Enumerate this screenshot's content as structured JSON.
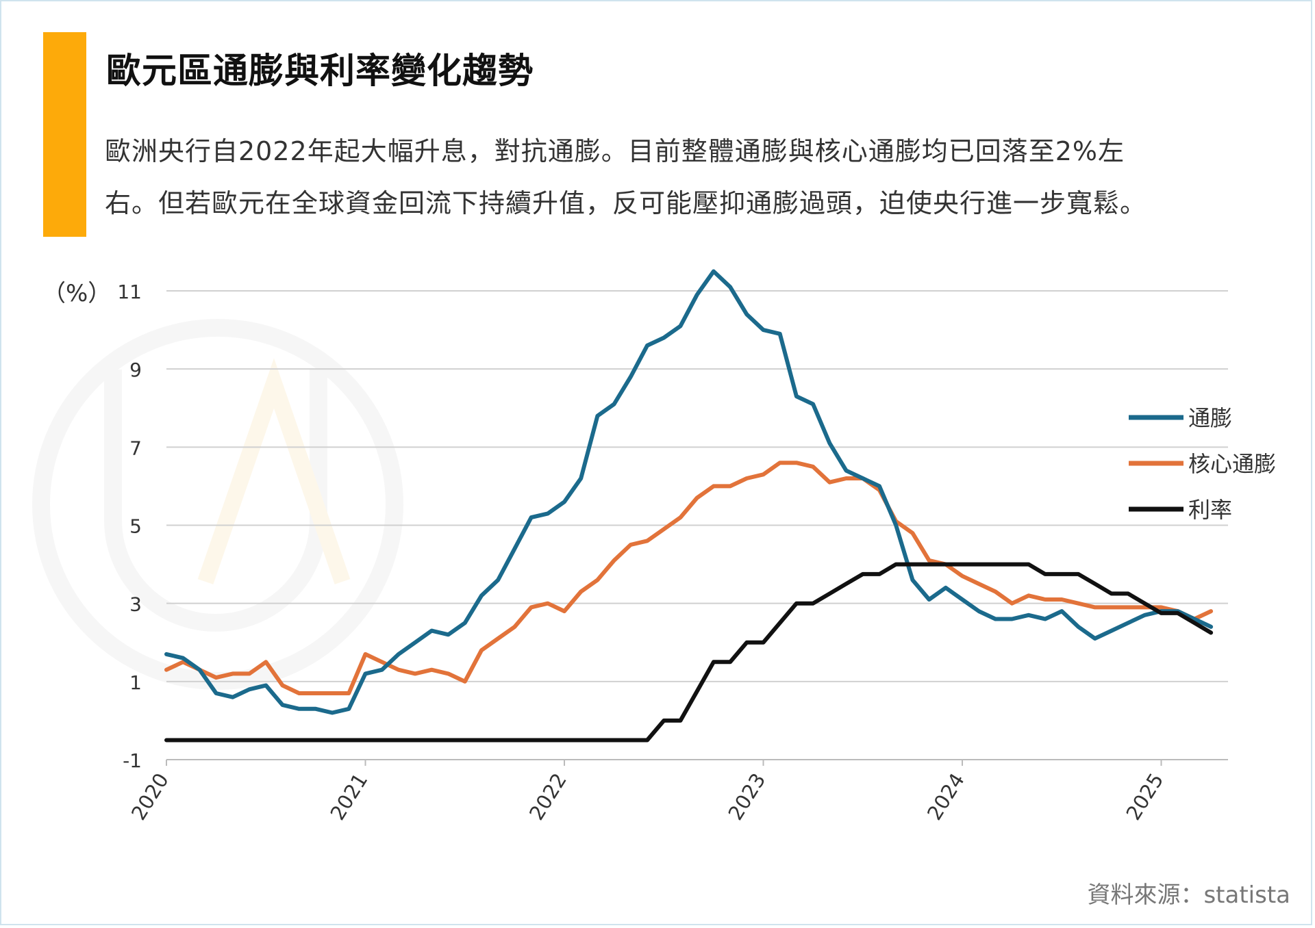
{
  "title": "歐元區通膨與利率變化趨勢",
  "subtitle_lines": [
    "歐洲央行自2022年起大幅升息，對抗通膨。目前整體通膨與核心通膨均已回落至2%左",
    "右。但若歐元在全球資金回流下持續升值，反可能壓抑通膨過頭，迫使央行進一步寬鬆。"
  ],
  "source": "資料來源：statista",
  "colors": {
    "accent": "#FDAA0A",
    "inflation": "#1B6A8C",
    "core_inflation": "#E2733A",
    "interest_rate": "#111111",
    "grid": "#D0D0D0"
  },
  "chart_data": {
    "type": "line",
    "ylabel": "（%）",
    "ylim": [
      -1,
      11
    ],
    "yticks": [
      -1,
      1,
      3,
      5,
      7,
      9,
      11
    ],
    "xlim": [
      2020,
      2025.33
    ],
    "xticks": [
      "2020",
      "2021",
      "2022",
      "2023",
      "2024",
      "2025"
    ],
    "legend_position": "right",
    "grid": true,
    "x_start": "2020-01",
    "x_step": "month",
    "series": [
      {
        "name": "通膨",
        "color_key": "inflation",
        "values": [
          1.7,
          1.6,
          1.3,
          0.7,
          0.6,
          0.8,
          0.9,
          0.4,
          0.3,
          0.3,
          0.2,
          0.3,
          1.2,
          1.3,
          1.7,
          2.0,
          2.3,
          2.2,
          2.5,
          3.2,
          3.6,
          4.4,
          5.2,
          5.3,
          5.6,
          6.2,
          7.8,
          8.1,
          8.8,
          9.6,
          9.8,
          10.1,
          10.9,
          11.5,
          11.1,
          10.4,
          10.0,
          9.9,
          8.3,
          8.1,
          7.1,
          6.4,
          6.2,
          6.0,
          5.0,
          3.6,
          3.1,
          3.4,
          3.1,
          2.8,
          2.6,
          2.6,
          2.7,
          2.6,
          2.8,
          2.4,
          2.1,
          2.3,
          2.5,
          2.7,
          2.8,
          2.8,
          2.6,
          2.4
        ]
      },
      {
        "name": "核心通膨",
        "color_key": "core_inflation",
        "values": [
          1.3,
          1.5,
          1.3,
          1.1,
          1.2,
          1.2,
          1.5,
          0.9,
          0.7,
          0.7,
          0.7,
          0.7,
          1.7,
          1.5,
          1.3,
          1.2,
          1.3,
          1.2,
          1.0,
          1.8,
          2.1,
          2.4,
          2.9,
          3.0,
          2.8,
          3.3,
          3.6,
          4.1,
          4.5,
          4.6,
          4.9,
          5.2,
          5.7,
          6.0,
          6.0,
          6.2,
          6.3,
          6.6,
          6.6,
          6.5,
          6.1,
          6.2,
          6.2,
          5.9,
          5.1,
          4.8,
          4.1,
          4.0,
          3.7,
          3.5,
          3.3,
          3.0,
          3.2,
          3.1,
          3.1,
          3.0,
          2.9,
          2.9,
          2.9,
          2.9,
          2.9,
          2.8,
          2.6,
          2.8
        ]
      },
      {
        "name": "利率",
        "color_key": "interest_rate",
        "values": [
          -0.5,
          -0.5,
          -0.5,
          -0.5,
          -0.5,
          -0.5,
          -0.5,
          -0.5,
          -0.5,
          -0.5,
          -0.5,
          -0.5,
          -0.5,
          -0.5,
          -0.5,
          -0.5,
          -0.5,
          -0.5,
          -0.5,
          -0.5,
          -0.5,
          -0.5,
          -0.5,
          -0.5,
          -0.5,
          -0.5,
          -0.5,
          -0.5,
          -0.5,
          -0.5,
          0.0,
          0.0,
          0.75,
          1.5,
          1.5,
          2.0,
          2.0,
          2.5,
          3.0,
          3.0,
          3.25,
          3.5,
          3.75,
          3.75,
          4.0,
          4.0,
          4.0,
          4.0,
          4.0,
          4.0,
          4.0,
          4.0,
          4.0,
          3.75,
          3.75,
          3.75,
          3.5,
          3.25,
          3.25,
          3.0,
          2.75,
          2.75,
          2.5,
          2.25
        ]
      }
    ]
  }
}
